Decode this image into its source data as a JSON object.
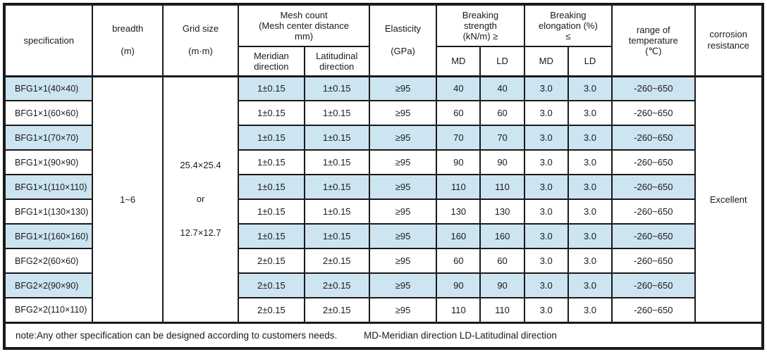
{
  "colors": {
    "highlight": "#cde4f1",
    "border": "#1a1a1a",
    "text": "#1a1a1a"
  },
  "table": {
    "header": {
      "specification": "specification",
      "breadth": "breadth\n\n(m)",
      "grid_size": "Grid size\n\n(m·m)",
      "mesh_count": "Mesh count\n(Mesh center distance\nmm)",
      "meridian": "Meridian\ndirection",
      "latitudinal": "Latitudinal\ndirection",
      "elasticity": "Elasticity\n\n(GPa)",
      "breaking_strength": "Breaking\nstrength\n(kN/m) ≥",
      "breaking_elongation": "Breaking\nelongation (%)\n≤",
      "strength_md": "MD",
      "strength_ld": "LD",
      "elongation_md": "MD",
      "elongation_ld": "LD",
      "temperature_range": "range of\ntemperature\n(℃)",
      "corrosion": "corrosion\nresistance"
    },
    "merged": {
      "breadth_value": "1~6",
      "grid_size_value": "25.4×25.4\nor\n12.7×12.7",
      "corrosion_value": "Excellent"
    },
    "rows": [
      {
        "spec": "BFG1×1(40×40)",
        "meridian": "1±0.15",
        "latitudinal": "1±0.15",
        "elasticity": "≥95",
        "strength_md": "40",
        "strength_ld": "40",
        "elongation_md": "3.0",
        "elongation_ld": "3.0",
        "temperature": "-260~650"
      },
      {
        "spec": "BFG1×1(60×60)",
        "meridian": "1±0.15",
        "latitudinal": "1±0.15",
        "elasticity": "≥95",
        "strength_md": "60",
        "strength_ld": "60",
        "elongation_md": "3.0",
        "elongation_ld": "3.0",
        "temperature": "-260~650"
      },
      {
        "spec": "BFG1×1(70×70)",
        "meridian": "1±0.15",
        "latitudinal": "1±0.15",
        "elasticity": "≥95",
        "strength_md": "70",
        "strength_ld": "70",
        "elongation_md": "3.0",
        "elongation_ld": "3.0",
        "temperature": "-260~650"
      },
      {
        "spec": "BFG1×1(90×90)",
        "meridian": "1±0.15",
        "latitudinal": "1±0.15",
        "elasticity": "≥95",
        "strength_md": "90",
        "strength_ld": "90",
        "elongation_md": "3.0",
        "elongation_ld": "3.0",
        "temperature": "-260~650"
      },
      {
        "spec": "BFG1×1(110×110)",
        "meridian": "1±0.15",
        "latitudinal": "1±0.15",
        "elasticity": "≥95",
        "strength_md": "110",
        "strength_ld": "110",
        "elongation_md": "3.0",
        "elongation_ld": "3.0",
        "temperature": "-260~650"
      },
      {
        "spec": "BFG1×1(130×130)",
        "meridian": "1±0.15",
        "latitudinal": "1±0.15",
        "elasticity": "≥95",
        "strength_md": "130",
        "strength_ld": "130",
        "elongation_md": "3.0",
        "elongation_ld": "3.0",
        "temperature": "-260~650"
      },
      {
        "spec": "BFG1×1(160×160)",
        "meridian": "1±0.15",
        "latitudinal": "1±0.15",
        "elasticity": "≥95",
        "strength_md": "160",
        "strength_ld": "160",
        "elongation_md": "3.0",
        "elongation_ld": "3.0",
        "temperature": "-260~650"
      },
      {
        "spec": "BFG2×2(60×60)",
        "meridian": "2±0.15",
        "latitudinal": "2±0.15",
        "elasticity": "≥95",
        "strength_md": "60",
        "strength_ld": "60",
        "elongation_md": "3.0",
        "elongation_ld": "3.0",
        "temperature": "-260~650"
      },
      {
        "spec": "BFG2×2(90×90)",
        "meridian": "2±0.15",
        "latitudinal": "2±0.15",
        "elasticity": "≥95",
        "strength_md": "90",
        "strength_ld": "90",
        "elongation_md": "3.0",
        "elongation_ld": "3.0",
        "temperature": "-260~650"
      },
      {
        "spec": "BFG2×2(110×110)",
        "meridian": "2±0.15",
        "latitudinal": "2±0.15",
        "elasticity": "≥95",
        "strength_md": "110",
        "strength_ld": "110",
        "elongation_md": "3.0",
        "elongation_ld": "3.0",
        "temperature": "-260~650"
      }
    ],
    "note": {
      "text": "note:Any other specification can be designed according to customers needs.",
      "legend": "MD-Meridian direction LD-Latitudinal direction"
    }
  }
}
